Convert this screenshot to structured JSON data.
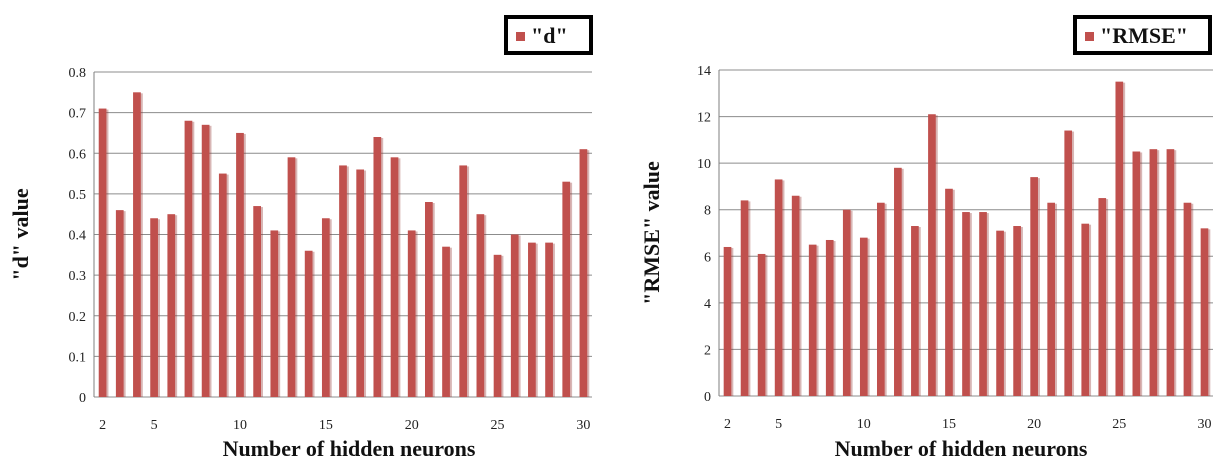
{
  "chart_data": [
    {
      "type": "bar",
      "title": "",
      "xlabel": "Number of hidden neurons",
      "ylabel": "\"d\" value",
      "ylim": [
        0,
        0.8
      ],
      "yticks": [
        "0",
        "0.1",
        "0.2",
        "0.3",
        "0.4",
        "0.5",
        "0.6",
        "0.7",
        "0.8"
      ],
      "xtick_labels": [
        "2",
        "5",
        "10",
        "15",
        "20",
        "25",
        "30"
      ],
      "grid": true,
      "legend_position": "top-right",
      "bar_color": "#c0504d",
      "series": [
        {
          "name": "\"d\"",
          "x": [
            2,
            3,
            4,
            5,
            6,
            7,
            8,
            9,
            10,
            11,
            12,
            13,
            14,
            15,
            16,
            17,
            18,
            19,
            20,
            21,
            22,
            23,
            24,
            25,
            26,
            27,
            28,
            29,
            30
          ],
          "values": [
            0.71,
            0.46,
            0.75,
            0.44,
            0.45,
            0.68,
            0.67,
            0.55,
            0.65,
            0.47,
            0.41,
            0.59,
            0.36,
            0.44,
            0.57,
            0.56,
            0.64,
            0.59,
            0.41,
            0.48,
            0.37,
            0.57,
            0.45,
            0.35,
            0.4,
            0.38,
            0.38,
            0.53,
            0.61
          ]
        }
      ]
    },
    {
      "type": "bar",
      "title": "",
      "xlabel": "Number of hidden neurons",
      "ylabel": "\"RMSE\" value",
      "ylim": [
        0,
        14
      ],
      "yticks": [
        "0",
        "2",
        "4",
        "6",
        "8",
        "10",
        "12",
        "14"
      ],
      "xtick_labels": [
        "2",
        "5",
        "10",
        "15",
        "20",
        "25",
        "30"
      ],
      "grid": true,
      "legend_position": "top-right",
      "bar_color": "#c0504d",
      "series": [
        {
          "name": "\"RMSE\"",
          "x": [
            2,
            3,
            4,
            5,
            6,
            7,
            8,
            9,
            10,
            11,
            12,
            13,
            14,
            15,
            16,
            17,
            18,
            19,
            20,
            21,
            22,
            23,
            24,
            25,
            26,
            27,
            28,
            29,
            30
          ],
          "values": [
            6.4,
            8.4,
            6.1,
            9.3,
            8.6,
            6.5,
            6.7,
            8.0,
            6.8,
            8.3,
            9.8,
            7.3,
            12.1,
            8.9,
            7.9,
            7.9,
            7.1,
            7.3,
            9.4,
            8.3,
            11.4,
            7.4,
            8.5,
            13.5,
            10.5,
            10.6,
            10.6,
            8.3,
            7.2
          ]
        }
      ]
    }
  ]
}
